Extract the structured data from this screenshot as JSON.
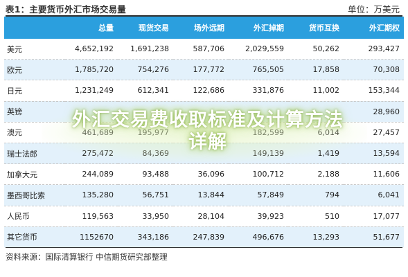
{
  "title": {
    "left": "表1：主要货币外汇市场交易量",
    "right": "单位：万美元"
  },
  "table": {
    "headers": [
      "",
      "总量",
      "现货交易",
      "场外远期",
      "外汇掉期",
      "货币互换",
      "外汇期权"
    ],
    "rows": [
      [
        "美元",
        "4,652,192",
        "1,691,238",
        "587,706",
        "2,029,559",
        "50,262",
        "293,427"
      ],
      [
        "欧元",
        "1,785,720",
        "754,276",
        "177,772",
        "765,505",
        "17,858",
        "70,308"
      ],
      [
        "日元",
        "1,231,249",
        "612,341",
        "122,686",
        "331,876",
        "11,002",
        "153,344"
      ],
      [
        "英镑",
        "",
        "",
        "",
        "",
        "",
        "28,960"
      ],
      [
        "澳元",
        "461,689",
        "195,977",
        "",
        "182,599",
        "6,014",
        "27,457"
      ],
      [
        "瑞士法郎",
        "275,472",
        "84,369",
        "",
        "149,139",
        "1,419",
        "13,594"
      ],
      [
        "加拿大元",
        "244,089",
        "93,488",
        "36,096",
        "100,712",
        "2,188",
        "11,606"
      ],
      [
        "墨西哥比索",
        "135,280",
        "56,751",
        "13,844",
        "57,849",
        "794",
        "6,041"
      ],
      [
        "人民币",
        "119,563",
        "33,950",
        "28,104",
        "39,923",
        "510",
        "17,077"
      ],
      [
        "其它货币",
        "1152670",
        "343,186",
        "247,839",
        "496,676",
        "13,293",
        "51,677"
      ]
    ]
  },
  "source": "资料来源：国际清算银行 中信期货研究部整理",
  "watermark": {
    "line1": "外汇交易费收取标准及计算方法",
    "line2": "详解"
  }
}
